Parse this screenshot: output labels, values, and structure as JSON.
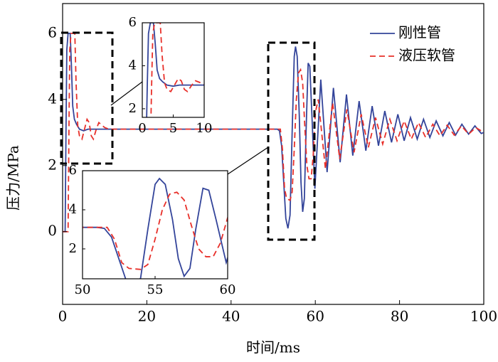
{
  "chart_data": {
    "type": "line",
    "x_label": "时间/ms",
    "y_label": "压力/MPa",
    "xlim": [
      0,
      100
    ],
    "ylim": [
      -2.2,
      6.9
    ],
    "xticks": [
      0,
      20,
      40,
      60,
      80,
      100
    ],
    "yticks": [
      0,
      2,
      4,
      6
    ],
    "legend": "upper right",
    "series": [
      {
        "name": "刚性管",
        "color": "#33449a",
        "line_style": "solid",
        "x": [
          0,
          0.6,
          0.8,
          1.0,
          1.3,
          1.8,
          2.1,
          2.4,
          2.8,
          3.3,
          4,
          5,
          6,
          10,
          30,
          51,
          51.5,
          52,
          52.5,
          53,
          53.5,
          54,
          54.5,
          55,
          55.3,
          55.7,
          56.2,
          56.6,
          57,
          57.4,
          57.8,
          58.3,
          58.7,
          59.2,
          59.9,
          61.3,
          62.8,
          64.3,
          65.9,
          67.4,
          68.9,
          70.4,
          72.0,
          73.5,
          75.0,
          76.5,
          78.1,
          79.6,
          81.1,
          82.6,
          84.2,
          85.7,
          87.2,
          88.7,
          90.3,
          91.8,
          93.3,
          94.8,
          96.4,
          97.9,
          99.4,
          100
        ],
        "values": [
          0,
          0,
          3,
          5.5,
          6,
          6,
          5,
          3.8,
          3.4,
          3.25,
          3.1,
          3.05,
          3.1,
          3.1,
          3.1,
          3.1,
          3.05,
          2.6,
          1.5,
          0.4,
          0.1,
          0.5,
          3.0,
          5.3,
          5.6,
          5.3,
          3.5,
          1.5,
          0.6,
          1.0,
          3.0,
          5.1,
          5.0,
          3.5,
          1.3,
          4.6,
          1.8,
          4.35,
          2.1,
          4.15,
          2.3,
          3.95,
          2.45,
          3.8,
          2.6,
          3.65,
          2.7,
          3.55,
          2.75,
          3.45,
          2.8,
          3.4,
          2.85,
          3.35,
          2.9,
          3.3,
          2.92,
          3.25,
          2.95,
          3.2,
          2.97,
          3.0
        ]
      },
      {
        "name": "液压软管",
        "color": "#e8302a",
        "line_style": "dashed",
        "x": [
          0,
          1.3,
          1.5,
          1.7,
          2,
          2.9,
          3.2,
          3.6,
          4,
          4.6,
          5.2,
          5.8,
          6.3,
          6.8,
          7.3,
          8,
          8.6,
          9.5,
          10,
          11,
          30,
          51.7,
          52.2,
          52.7,
          53.2,
          54,
          54.5,
          55,
          55.5,
          56,
          56.5,
          57,
          57.5,
          58,
          58.5,
          59,
          59.5,
          60,
          60.7,
          62.4,
          64.1,
          65.8,
          67.5,
          69.2,
          70.9,
          72.6,
          74.3,
          76,
          77.7,
          79.4,
          81.1,
          82.8,
          84.5,
          86.2,
          87.9,
          89.6,
          91.3,
          93,
          94.7,
          96.4,
          98.1,
          100
        ],
        "values": [
          0,
          0,
          3,
          5.5,
          6,
          6,
          4.5,
          3.2,
          2.9,
          2.8,
          3.1,
          3.4,
          3.3,
          2.9,
          2.8,
          3.1,
          3.3,
          3.2,
          3.15,
          3.1,
          3.1,
          3.1,
          2.5,
          1.3,
          1.0,
          0.95,
          1.2,
          2.5,
          4.0,
          4.8,
          4.9,
          4.5,
          3.2,
          2.0,
          1.6,
          1.6,
          2.3,
          3.6,
          4.0,
          1.9,
          3.9,
          2.2,
          3.7,
          2.4,
          3.55,
          2.55,
          3.45,
          2.65,
          3.4,
          2.75,
          3.35,
          2.8,
          3.3,
          2.85,
          3.25,
          2.9,
          3.22,
          2.92,
          3.2,
          2.95,
          3.15,
          3.0
        ]
      }
    ],
    "insets": [
      {
        "xlim": [
          0,
          10
        ],
        "ylim": [
          1.6,
          6
        ],
        "xticks": [
          0,
          5,
          10
        ],
        "yticks": [
          2,
          4,
          6
        ]
      },
      {
        "xlim": [
          50,
          60
        ],
        "ylim": [
          0.47,
          6
        ],
        "xticks": [
          50,
          55,
          60
        ],
        "yticks": [
          2,
          4,
          6
        ]
      }
    ]
  }
}
